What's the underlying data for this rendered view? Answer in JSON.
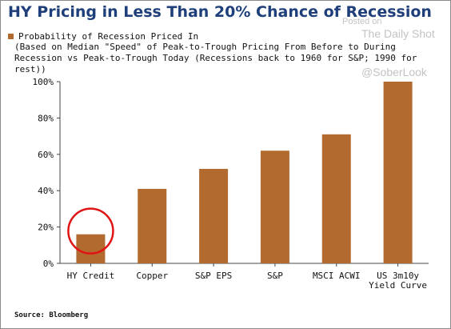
{
  "title": "HY Pricing in Less Than 20% Chance of Recession",
  "watermarks": {
    "posted_on": "Posted on",
    "site": "The Daily Shot",
    "handle": "@SoberLook"
  },
  "legend": {
    "label": "Probability of Recession Priced In",
    "color": "#b36a2f"
  },
  "subtitle": "(Based on Median \"Speed\" of Peak-to-Trough Pricing From Before to During Recession vs Peak-to-Trough Today (Recessions back to 1960 for S&P; 1990 for rest))",
  "source": "Source: Bloomberg",
  "chart_data": {
    "type": "bar",
    "categories": [
      "HY Credit",
      "Copper",
      "S&P EPS",
      "S&P",
      "MSCI ACWI",
      "US 3m10y Yield Curve"
    ],
    "category_lines": [
      [
        "HY Credit"
      ],
      [
        "Copper"
      ],
      [
        "S&P EPS"
      ],
      [
        "S&P"
      ],
      [
        "MSCI ACWI"
      ],
      [
        "US 3m10y",
        "Yield Curve"
      ]
    ],
    "values": [
      16,
      41,
      52,
      62,
      71,
      100
    ],
    "ylim": [
      0,
      100
    ],
    "yticks": [
      0,
      20,
      40,
      60,
      80,
      100
    ],
    "ytick_labels": [
      "0%",
      "20%",
      "40%",
      "60%",
      "80%",
      "100%"
    ],
    "bar_color": "#b36a2f",
    "grid": false,
    "highlight": {
      "category": "HY Credit",
      "color": "#e01414"
    }
  }
}
